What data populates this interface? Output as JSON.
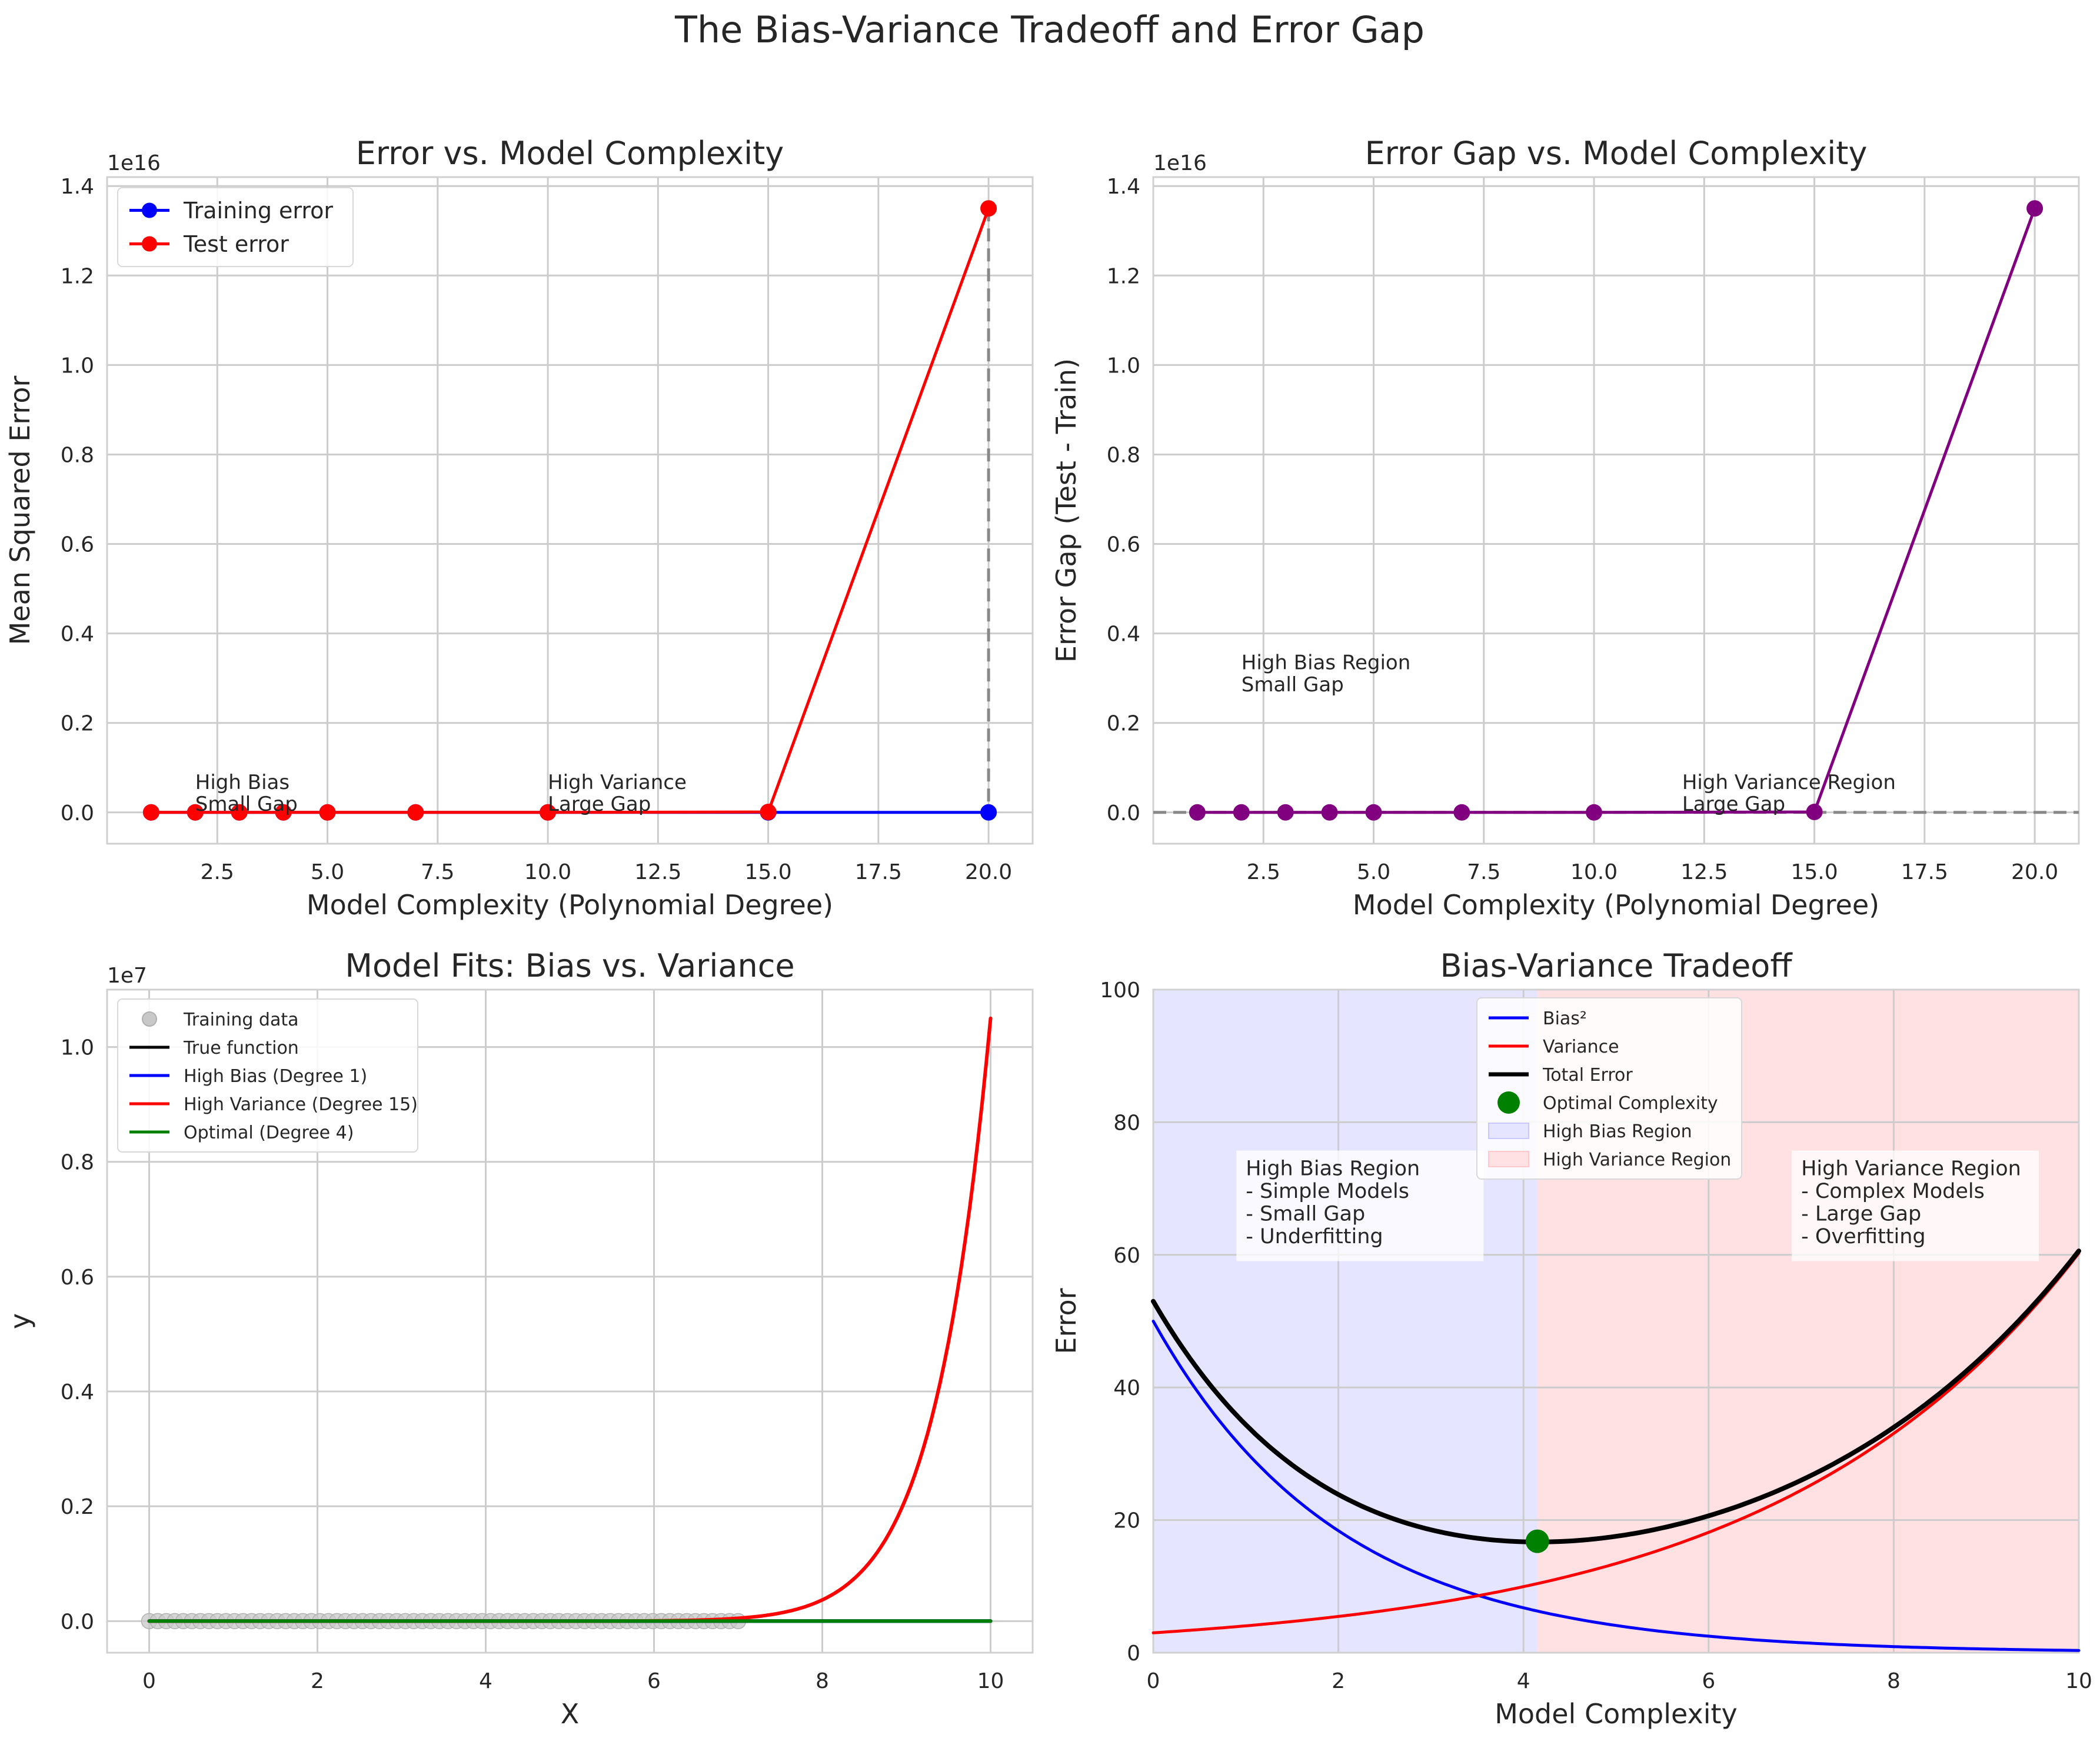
{
  "suptitle": "The Bias-Variance Tradeoff and Error Gap",
  "colors": {
    "train": "#0000ff",
    "test": "#ff0000",
    "gap": "#800080",
    "true_fn": "#000000",
    "optimal": "#008000",
    "training_points": "#c8c8c8",
    "bias_region": "#e5e5ff",
    "variance_region": "#ffe0e3",
    "grid": "#cccccc",
    "spine": "#d0d0d0"
  },
  "chart_data": [
    {
      "type": "line",
      "title": "Error vs. Model Complexity",
      "xlabel": "Model Complexity (Polynomial Degree)",
      "ylabel": "Mean Squared Error",
      "offset_label": "1e16",
      "xlim": [
        0,
        21
      ],
      "ylim": [
        -0.07,
        1.42
      ],
      "xticks": [
        2.5,
        5.0,
        7.5,
        10.0,
        12.5,
        15.0,
        17.5,
        20.0
      ],
      "xtick_labels": [
        "2.5",
        "5.0",
        "7.5",
        "10.0",
        "12.5",
        "15.0",
        "17.5",
        "20.0"
      ],
      "yticks": [
        0.0,
        0.2,
        0.4,
        0.6,
        0.8,
        1.0,
        1.2,
        1.4
      ],
      "ytick_labels": [
        "0.0",
        "0.2",
        "0.4",
        "0.6",
        "0.8",
        "1.0",
        "1.2",
        "1.4"
      ],
      "grid": true,
      "legend": "top-left",
      "x": [
        1,
        2,
        3,
        4,
        5,
        7,
        10,
        15,
        20
      ],
      "series": [
        {
          "name": "Training error",
          "values": [
            0,
            0,
            0,
            0,
            0,
            0,
            0,
            0,
            0
          ]
        },
        {
          "name": "Test error",
          "values": [
            0,
            0,
            0,
            0,
            0,
            0,
            0,
            0.001,
            1.35
          ]
        }
      ],
      "gap_marker_x": 20,
      "annotations": [
        {
          "x": 2,
          "y": 0.0,
          "lines": [
            "High Bias",
            "Small Gap"
          ]
        },
        {
          "x": 10,
          "y": 0.0,
          "lines": [
            "High Variance",
            "Large Gap"
          ]
        }
      ]
    },
    {
      "type": "line",
      "title": "Error Gap vs. Model Complexity",
      "xlabel": "Model Complexity (Polynomial Degree)",
      "ylabel": "Error Gap (Test - Train)",
      "offset_label": "1e16",
      "xlim": [
        0,
        21
      ],
      "ylim": [
        -0.07,
        1.42
      ],
      "xticks": [
        2.5,
        5.0,
        7.5,
        10.0,
        12.5,
        15.0,
        17.5,
        20.0
      ],
      "xtick_labels": [
        "2.5",
        "5.0",
        "7.5",
        "10.0",
        "12.5",
        "15.0",
        "17.5",
        "20.0"
      ],
      "yticks": [
        0.0,
        0.2,
        0.4,
        0.6,
        0.8,
        1.0,
        1.2,
        1.4
      ],
      "ytick_labels": [
        "0.0",
        "0.2",
        "0.4",
        "0.6",
        "0.8",
        "1.0",
        "1.2",
        "1.4"
      ],
      "grid": true,
      "x": [
        1,
        2,
        3,
        4,
        5,
        7,
        10,
        15,
        20
      ],
      "series": [
        {
          "values": [
            0,
            0,
            0,
            0,
            0,
            0,
            0,
            0.001,
            1.35
          ]
        }
      ],
      "zero_line": 0,
      "annotations": [
        {
          "x": 2,
          "y": 0.27,
          "lines": [
            "High Bias Region",
            "Small Gap"
          ]
        },
        {
          "x": 12,
          "y": 0.0,
          "lines": [
            "High Variance Region",
            "Large Gap"
          ]
        }
      ]
    },
    {
      "type": "line",
      "title": "Model Fits: Bias vs. Variance",
      "xlabel": "X",
      "ylabel": "y",
      "offset_label": "1e7",
      "xlim": [
        -0.5,
        10.5
      ],
      "ylim": [
        -0.055,
        1.1
      ],
      "xticks": [
        0,
        2,
        4,
        6,
        8,
        10
      ],
      "xtick_labels": [
        "0",
        "2",
        "4",
        "6",
        "8",
        "10"
      ],
      "yticks": [
        0.0,
        0.2,
        0.4,
        0.6,
        0.8,
        1.0
      ],
      "ytick_labels": [
        "0.0",
        "0.2",
        "0.4",
        "0.6",
        "0.8",
        "1.0"
      ],
      "grid": true,
      "legend": "top-left",
      "training_data": {
        "name": "Training data",
        "x_start": 0,
        "x_end": 7,
        "count": 70,
        "y": 0
      },
      "series": [
        {
          "name": "True function",
          "x_end": 10,
          "final_value": 0
        },
        {
          "name": "High Bias (Degree 1)",
          "x_end": 10,
          "final_value": 0
        },
        {
          "name": "High Variance (Degree 15)",
          "x_end": 10,
          "final_value": 1.05
        },
        {
          "name": "Optimal (Degree 4)",
          "x_end": 10,
          "final_value": 0
        }
      ]
    },
    {
      "type": "line",
      "title": "Bias-Variance Tradeoff",
      "xlabel": "Model Complexity",
      "ylabel": "Error",
      "xlim": [
        0,
        10
      ],
      "ylim": [
        0,
        100
      ],
      "xticks": [
        0,
        2,
        4,
        6,
        8,
        10
      ],
      "xtick_labels": [
        "0",
        "2",
        "4",
        "6",
        "8",
        "10"
      ],
      "yticks": [
        0,
        20,
        40,
        60,
        80,
        100
      ],
      "ytick_labels": [
        "0",
        "20",
        "40",
        "60",
        "80",
        "100"
      ],
      "grid": true,
      "legend": "top-center",
      "series": [
        {
          "name": "Bias²",
          "x": [
            0,
            1,
            2,
            3,
            4,
            5,
            6,
            7,
            8,
            9,
            10
          ],
          "values": [
            50.0,
            30.3,
            18.4,
            11.2,
            6.8,
            4.1,
            2.5,
            1.5,
            0.9,
            0.6,
            0.3
          ]
        },
        {
          "name": "Variance",
          "x": [
            0,
            1,
            2,
            3,
            4,
            5,
            6,
            7,
            8,
            9,
            10
          ],
          "values": [
            3.0,
            4.0,
            5.4,
            7.4,
            10.0,
            13.5,
            18.3,
            24.7,
            33.4,
            45.0,
            60.3
          ]
        },
        {
          "name": "Total Error",
          "x": [
            0,
            1,
            2,
            3,
            4,
            5,
            6,
            7,
            8,
            9,
            10
          ],
          "values": [
            53.0,
            34.3,
            23.8,
            18.6,
            16.8,
            17.6,
            20.8,
            26.2,
            34.3,
            45.6,
            60.6
          ]
        }
      ],
      "optimal_point": {
        "name": "Optimal Complexity",
        "x": 4.15,
        "y": 16.8
      },
      "regions": [
        {
          "name": "High Bias Region",
          "x0": 0,
          "x1": 4.15
        },
        {
          "name": "High Variance Region",
          "x0": 4.15,
          "x1": 10
        }
      ],
      "annotations": [
        {
          "x": 1,
          "y": 72,
          "lines": [
            "High Bias Region",
            "- Simple Models",
            "- Small Gap",
            "- Underfitting"
          ]
        },
        {
          "x": 7,
          "y": 72,
          "lines": [
            "High Variance Region",
            "- Complex Models",
            "- Large Gap",
            "- Overfitting"
          ]
        }
      ]
    }
  ]
}
